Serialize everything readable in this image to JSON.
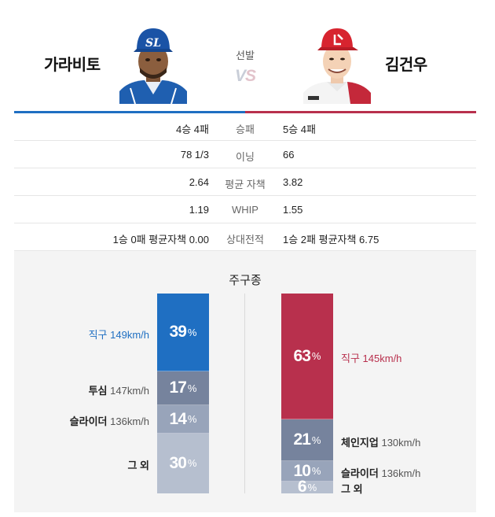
{
  "header": {
    "left_player": "가라비토",
    "right_player": "김건우",
    "center_label": "선발",
    "vs_text": "VS"
  },
  "stats": [
    {
      "left": "4승 4패",
      "label": "승패",
      "right": "5승 4패"
    },
    {
      "left": "78 1/3",
      "label": "이닝",
      "right": "66"
    },
    {
      "left": "2.64",
      "label": "평균 자책",
      "right": "3.82"
    },
    {
      "left": "1.19",
      "label": "WHIP",
      "right": "1.55"
    },
    {
      "left": "1승 0패 평균자책 0.00",
      "label": "상대전적",
      "right": "1승 2패 평균자책 6.75"
    }
  ],
  "pitch_mix": {
    "title": "주구종",
    "pct_symbol": "%",
    "left": [
      {
        "name": "직구",
        "speed": "149km/h",
        "pct": "39",
        "value": 39,
        "color": "#1f6fc2"
      },
      {
        "name": "투심",
        "speed": "147km/h",
        "pct": "17",
        "value": 17,
        "color": "#76839d"
      },
      {
        "name": "슬라이더",
        "speed": "136km/h",
        "pct": "14",
        "value": 14,
        "color": "#98a4ba"
      },
      {
        "name": "그 외",
        "speed": "",
        "pct": "30",
        "value": 30,
        "color": "#b6bfcf"
      }
    ],
    "right": [
      {
        "name": "직구",
        "speed": "145km/h",
        "pct": "63",
        "value": 63,
        "color": "#b8304d"
      },
      {
        "name": "체인지업",
        "speed": "130km/h",
        "pct": "21",
        "value": 21,
        "color": "#76839d"
      },
      {
        "name": "슬라이더",
        "speed": "136km/h",
        "pct": "10",
        "value": 10,
        "color": "#98a4ba"
      },
      {
        "name": "그 외",
        "speed": "",
        "pct": "6",
        "value": 6,
        "color": "#b6bfcf"
      }
    ]
  },
  "colors": {
    "home_accent": "#1f6fc2",
    "away_accent": "#b8304d"
  }
}
